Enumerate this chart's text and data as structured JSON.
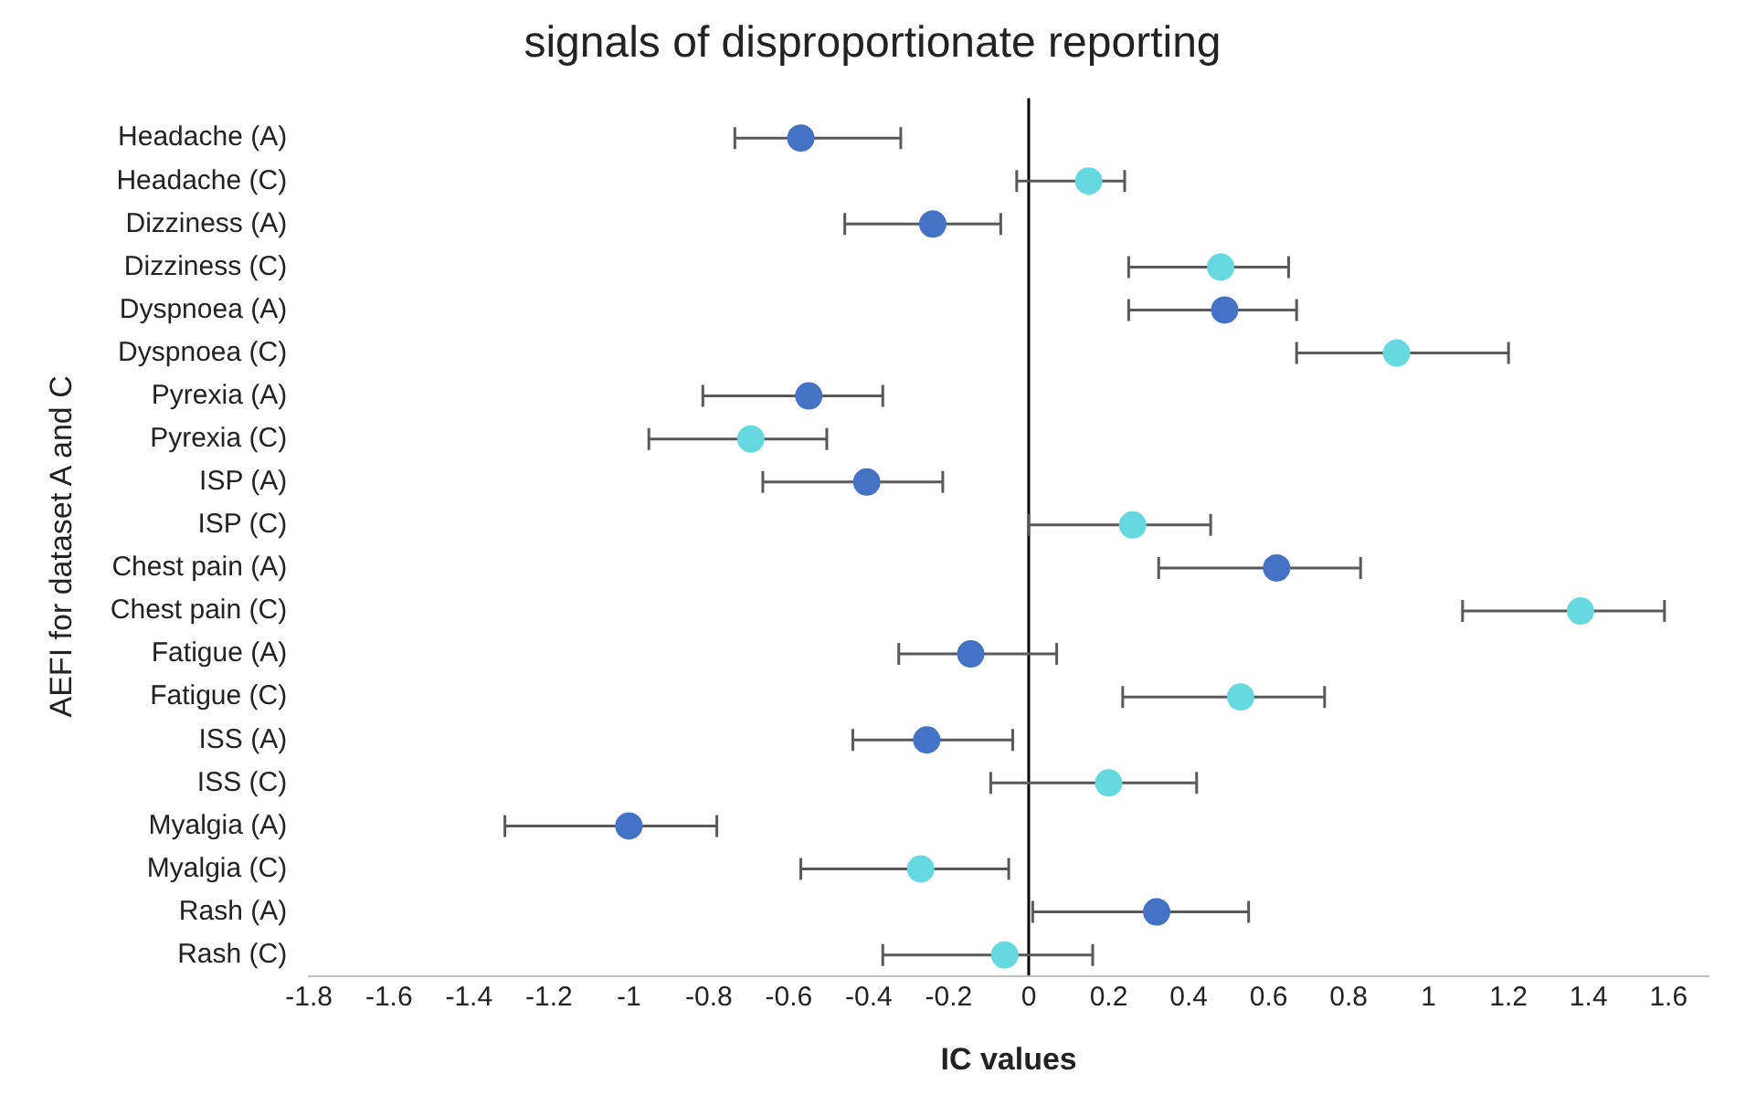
{
  "chart_data": {
    "type": "scatter",
    "title": "signals of disproportionate reporting",
    "xlabel": "IC values",
    "ylabel": "AEFI for dataset A and C",
    "orientation": "horizontal",
    "marker": "circle",
    "grid": false,
    "legend": false,
    "categories": [
      "Headache (A)",
      "Headache (C)",
      "Dizziness (A)",
      "Dizziness (C)",
      "Dyspnoea (A)",
      "Dyspnoea (C)",
      "Pyrexia (A)",
      "Pyrexia (C)",
      "ISP (A)",
      "ISP (C)",
      "Chest pain (A)",
      "Chest pain (C)",
      "Fatigue (A)",
      "Fatigue (C)",
      "ISS (A)",
      "ISS (C)",
      "Myalgia (A)",
      "Myalgia (C)",
      "Rash (A)",
      "Rash (C)"
    ],
    "xlim": [
      -1.8,
      1.7
    ],
    "xticks": [
      -1.8,
      -1.6,
      -1.4,
      -1.2,
      -1,
      -0.8,
      -0.6,
      -0.4,
      -0.2,
      0,
      0.2,
      0.4,
      0.6,
      0.8,
      1,
      1.2,
      1.4,
      1.6
    ],
    "ref_lines": [
      {
        "axis": "x",
        "value": 0,
        "color": "#000000"
      }
    ],
    "series": [
      {
        "color": "#4472c4",
        "values": [
          -0.57,
          null,
          -0.24,
          null,
          0.49,
          null,
          -0.55,
          null,
          -0.405,
          null,
          0.62,
          null,
          -0.145,
          null,
          -0.255,
          null,
          -1.0,
          null,
          0.32,
          null
        ],
        "errors": [
          [
            -0.735,
            -0.32
          ],
          null,
          [
            -0.46,
            -0.07
          ],
          null,
          [
            0.25,
            0.67
          ],
          null,
          [
            -0.815,
            -0.365
          ],
          null,
          [
            -0.665,
            -0.215
          ],
          null,
          [
            0.325,
            0.83
          ],
          null,
          [
            -0.325,
            0.07
          ],
          null,
          [
            -0.44,
            -0.04
          ],
          null,
          [
            -1.31,
            -0.78
          ],
          null,
          [
            0.01,
            0.55
          ],
          null
        ]
      },
      {
        "color": "#66d9e0",
        "values": [
          null,
          0.15,
          null,
          0.48,
          null,
          0.92,
          null,
          -0.695,
          null,
          0.26,
          null,
          1.38,
          null,
          0.53,
          null,
          0.2,
          null,
          -0.27,
          null,
          -0.06
        ],
        "errors": [
          null,
          [
            -0.03,
            0.24
          ],
          null,
          [
            0.25,
            0.65
          ],
          null,
          [
            0.67,
            1.2
          ],
          null,
          [
            -0.95,
            -0.505
          ],
          null,
          [
            0,
            0.455
          ],
          null,
          [
            1.085,
            1.59
          ],
          null,
          [
            0.235,
            0.74
          ],
          null,
          [
            -0.095,
            0.42
          ],
          null,
          [
            -0.57,
            -0.05
          ],
          null,
          [
            -0.365,
            0.16
          ]
        ]
      }
    ]
  }
}
